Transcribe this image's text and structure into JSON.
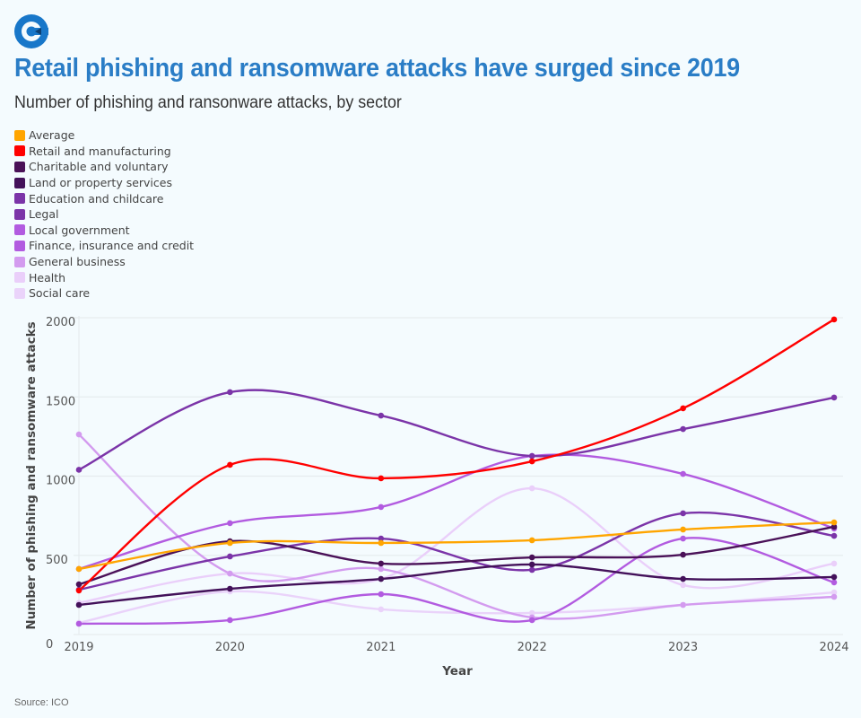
{
  "header": {
    "logo": "publisher-logo-icon",
    "title": "Retail phishing and ransomware attacks have surged since 2019",
    "subtitle": "Number of phishing and ransonware attacks, by sector"
  },
  "footer": {
    "source": "Source: ICO"
  },
  "colors": {
    "title": "#2A7DC6",
    "background": "#F4FBFE",
    "logo": "#1877C9"
  },
  "chart_data": {
    "type": "line",
    "title": "Retail phishing and ransomware attacks have surged since 2019",
    "subtitle": "Number of phishing and ransonware attacks, by sector",
    "xlabel": "Year",
    "ylabel": "Number of phishing and ransomware attacks",
    "x": [
      "2019",
      "2020",
      "2021",
      "2022",
      "2023",
      "2024"
    ],
    "ylim": [
      0,
      2000
    ],
    "yticks": [
      0,
      500,
      1000,
      1500,
      2000
    ],
    "grid": true,
    "legend_position": "top-left",
    "series": [
      {
        "name": "Average",
        "color": "#FFA500",
        "values": [
          414,
          578,
          578,
          595,
          663,
          708
        ]
      },
      {
        "name": "Retail and manufacturing",
        "color": "#FF0000",
        "values": [
          278,
          1071,
          986,
          1093,
          1428,
          1989
        ]
      },
      {
        "name": "Charitable and voluntary",
        "color": "#4A1158",
        "values": [
          317,
          589,
          448,
          487,
          504,
          680
        ]
      },
      {
        "name": "Land or property services",
        "color": "#43115A",
        "values": [
          187,
          289,
          351,
          442,
          351,
          363
        ]
      },
      {
        "name": "Education and childcare",
        "color": "#7B34A8",
        "values": [
          1040,
          1530,
          1382,
          1127,
          1297,
          1496
        ]
      },
      {
        "name": "Legal",
        "color": "#7B34A8",
        "values": [
          283,
          493,
          606,
          408,
          765,
          623
        ]
      },
      {
        "name": "Local government",
        "color": "#B25BE0",
        "values": [
          68,
          91,
          255,
          91,
          606,
          329
        ]
      },
      {
        "name": "Finance, insurance and credit",
        "color": "#B25BE0",
        "values": [
          414,
          703,
          805,
          1127,
          1014,
          669
        ]
      },
      {
        "name": "General business",
        "color": "#D39BEF",
        "values": [
          1263,
          385,
          414,
          108,
          187,
          238
        ]
      },
      {
        "name": "Health",
        "color": "#EACFFA",
        "values": [
          200,
          385,
          351,
          923,
          312,
          448
        ]
      },
      {
        "name": "Social care",
        "color": "#EAD3FA",
        "values": [
          74,
          272,
          159,
          136,
          187,
          266
        ]
      }
    ]
  }
}
